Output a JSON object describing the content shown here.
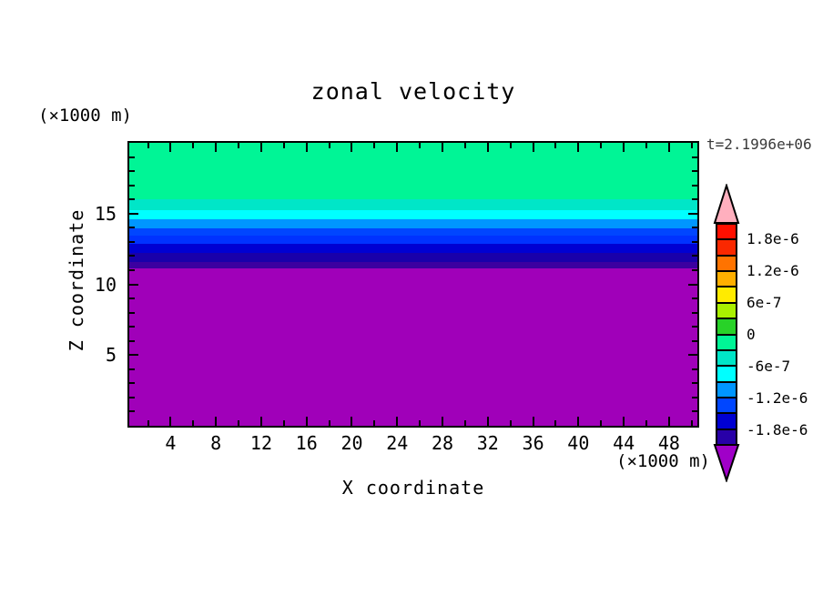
{
  "title": "zonal velocity",
  "timestamp": "t=2.1996e+06",
  "x_axis": {
    "label": "X coordinate",
    "unit": "(×1000 m)",
    "range": [
      0.35,
      50.5
    ],
    "tick_labels": [
      4,
      8,
      12,
      16,
      20,
      24,
      28,
      32,
      36,
      40,
      44,
      48
    ],
    "minor_ticks": [
      2,
      6,
      10,
      14,
      18,
      22,
      26,
      30,
      34,
      38,
      42,
      46,
      50
    ]
  },
  "y_axis": {
    "label": "Z coordinate",
    "unit": "(×1000 m)",
    "range": [
      0,
      20
    ],
    "tick_labels": [
      15,
      10,
      5
    ],
    "minor_ticks": [
      1,
      2,
      3,
      4,
      6,
      7,
      8,
      9,
      11,
      12,
      13,
      14,
      16,
      17,
      18,
      19
    ]
  },
  "chart_data": {
    "type": "heatmap",
    "title": "zonal velocity",
    "xlabel": "X coordinate",
    "ylabel": "Z coordinate",
    "x_unit": "(×1000 m)",
    "y_unit": "(×1000 m)",
    "time_annotation": "t=2.1996e+06",
    "x_range": [
      0.35,
      50.5
    ],
    "z_range": [
      0,
      20
    ],
    "description": "Filled-contour field of zonal velocity, uniform along x; value ~0 to -3e-7 near the surface (z=16..20), decreasing through contour bands between z=16 and z=11.1, and below -2.1e-6 (out-of-range purple) for z<11.1.",
    "bands": [
      {
        "z_from": 16.0,
        "z_to": 20.0,
        "value": "0 to -3e-7",
        "color": "#00F596"
      },
      {
        "z_from": 15.24,
        "z_to": 16.0,
        "value": "-3e-7 to -6e-7",
        "color": "#00E6C8"
      },
      {
        "z_from": 14.6,
        "z_to": 15.24,
        "value": "-6e-7 to -9e-7",
        "color": "#00FFFF"
      },
      {
        "z_from": 13.97,
        "z_to": 14.6,
        "value": "-9e-7 to -1.2e-6",
        "color": "#0096FF"
      },
      {
        "z_from": 13.46,
        "z_to": 13.97,
        "value": "-1.2e-6 to -1.5e-6",
        "color": "#0046FF"
      },
      {
        "z_from": 12.83,
        "z_to": 13.46,
        "value": "-1.5e-6 to -1.8e-6",
        "color": "#0032FF"
      },
      {
        "z_from": 12.19,
        "z_to": 12.83,
        "value": "-1.8e-6 to -2.1e-6",
        "color": "#0000D2"
      },
      {
        "z_from": 11.56,
        "z_to": 12.19,
        "value": "~-2.1e-6",
        "color": "#1900AA"
      },
      {
        "z_from": 11.11,
        "z_to": 11.56,
        "value": "~-2.2e-6",
        "color": "#3C00A0"
      },
      {
        "z_from": 0.0,
        "z_to": 11.11,
        "value": "< -2.1e-6",
        "color": "#A000B9"
      }
    ],
    "colorbar": {
      "min": -2.1e-06,
      "max": 2.1e-06,
      "tick_labels": [
        "1.8e-6",
        "1.2e-6",
        "6e-7",
        "0",
        "-6e-7",
        "-1.2e-6",
        "-1.8e-6"
      ],
      "segment_colors_top_to_bottom": [
        "#FF0F00",
        "#FA2800",
        "#FF7300",
        "#FFAF00",
        "#FFEB00",
        "#AAF000",
        "#28D228",
        "#00F596",
        "#00E6C8",
        "#00FFFF",
        "#0096FF",
        "#0046FF",
        "#0000D2",
        "#2800A8"
      ],
      "over_color": "#FFAFBE",
      "under_color": "#A000C8"
    }
  }
}
